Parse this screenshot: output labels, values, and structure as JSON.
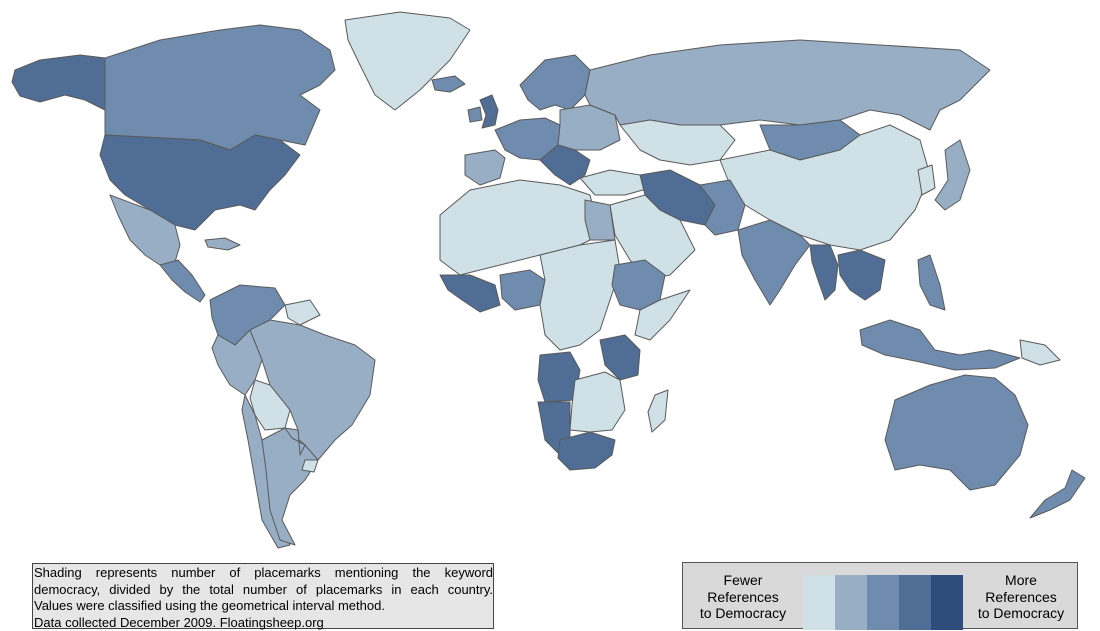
{
  "note": {
    "lines": [
      "Shading represents number of placemarks mentioning the keyword",
      "democracy, divided by the total number of placemarks in each country.",
      "Values were classified using the geometrical interval method.",
      "Data collected December 2009. Floatingsheep.org"
    ]
  },
  "legend": {
    "left_lines": [
      "Fewer",
      "References",
      "to Democracy"
    ],
    "right_lines": [
      "More",
      "References",
      "to Democracy"
    ],
    "classes": [
      "#cfe0e6",
      "#98aec5",
      "#6f8cae",
      "#4f6d95",
      "#2d4c79"
    ]
  },
  "map": {
    "background": "#ffffff",
    "border_color": "#5a5a5a",
    "regions": [
      {
        "name": "Alaska",
        "class": 3
      },
      {
        "name": "Canada",
        "class": 2
      },
      {
        "name": "Greenland",
        "class": 0
      },
      {
        "name": "United States",
        "class": 3
      },
      {
        "name": "Mexico",
        "class": 1
      },
      {
        "name": "Central America",
        "class": 2
      },
      {
        "name": "Cuba",
        "class": 1
      },
      {
        "name": "Venezuela / Colombia",
        "class": 2
      },
      {
        "name": "Guianas",
        "class": 0
      },
      {
        "name": "Brazil",
        "class": 1
      },
      {
        "name": "Peru",
        "class": 1
      },
      {
        "name": "Bolivia",
        "class": 0
      },
      {
        "name": "Chile",
        "class": 1
      },
      {
        "name": "Argentina",
        "class": 1
      },
      {
        "name": "Paraguay",
        "class": 1
      },
      {
        "name": "Uruguay",
        "class": 0
      },
      {
        "name": "Iceland",
        "class": 2
      },
      {
        "name": "United Kingdom",
        "class": 3
      },
      {
        "name": "Ireland",
        "class": 2
      },
      {
        "name": "Scandinavia",
        "class": 2
      },
      {
        "name": "Western Europe",
        "class": 2
      },
      {
        "name": "Eastern Europe",
        "class": 1
      },
      {
        "name": "Balkans",
        "class": 3
      },
      {
        "name": "Iberia",
        "class": 1
      },
      {
        "name": "Russia",
        "class": 1
      },
      {
        "name": "Kazakhstan",
        "class": 0
      },
      {
        "name": "Mongolia",
        "class": 2
      },
      {
        "name": "China",
        "class": 0
      },
      {
        "name": "Japan",
        "class": 1
      },
      {
        "name": "Korea",
        "class": 0
      },
      {
        "name": "Turkey",
        "class": 0
      },
      {
        "name": "Iran / Iraq",
        "class": 3
      },
      {
        "name": "Arabia",
        "class": 0
      },
      {
        "name": "Afghanistan / Pakistan",
        "class": 2
      },
      {
        "name": "India",
        "class": 2
      },
      {
        "name": "Myanmar",
        "class": 3
      },
      {
        "name": "Indochina",
        "class": 3
      },
      {
        "name": "Indonesia",
        "class": 2
      },
      {
        "name": "Philippines",
        "class": 2
      },
      {
        "name": "Papua New Guinea",
        "class": 0
      },
      {
        "name": "Australia",
        "class": 2
      },
      {
        "name": "New Zealand",
        "class": 2
      },
      {
        "name": "North Africa",
        "class": 0
      },
      {
        "name": "Egypt",
        "class": 1
      },
      {
        "name": "West Africa coast",
        "class": 3
      },
      {
        "name": "Nigeria",
        "class": 2
      },
      {
        "name": "Central Africa",
        "class": 0
      },
      {
        "name": "Ethiopia",
        "class": 2
      },
      {
        "name": "Somalia / Kenya",
        "class": 0
      },
      {
        "name": "Tanzania",
        "class": 3
      },
      {
        "name": "Angola",
        "class": 3
      },
      {
        "name": "Namibia",
        "class": 3
      },
      {
        "name": "South Africa",
        "class": 3
      },
      {
        "name": "Southern Africa interior",
        "class": 0
      },
      {
        "name": "Madagascar",
        "class": 0
      }
    ]
  }
}
